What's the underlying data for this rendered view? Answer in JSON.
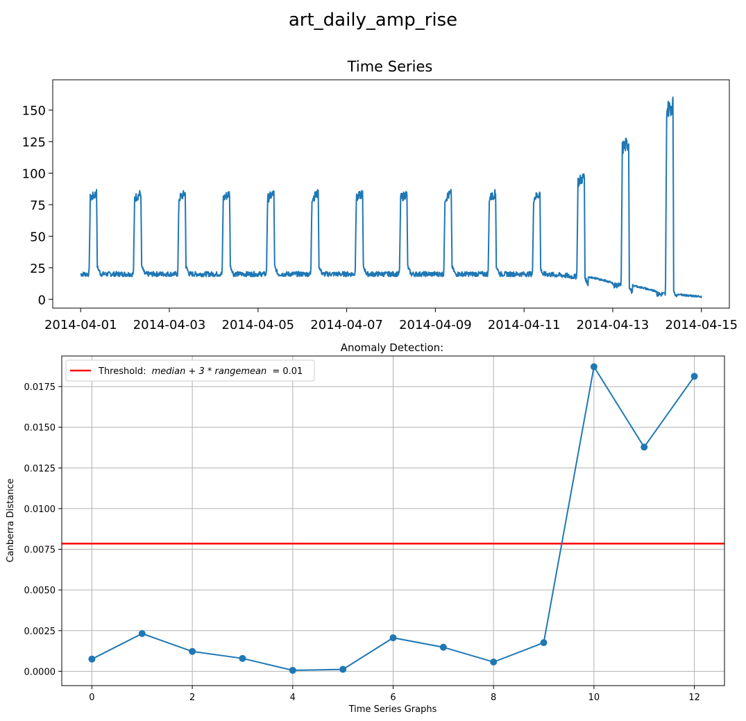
{
  "figure": {
    "suptitle": "art_daily_amp_rise"
  },
  "chart_data": [
    {
      "type": "line",
      "title": "Time Series",
      "xlabel": "",
      "ylabel": "",
      "x_tick_labels": [
        "2014-04-01",
        "2014-04-03",
        "2014-04-05",
        "2014-04-07",
        "2014-04-09",
        "2014-04-11",
        "2014-04-13",
        "2014-04-15"
      ],
      "y_ticks": [
        0,
        25,
        50,
        75,
        100,
        125,
        150
      ],
      "xlim": [
        "2014-04-01",
        "2014-04-15"
      ],
      "ylim": [
        -7,
        174
      ],
      "grid": false,
      "color": "#1f77b4",
      "series": [
        {
          "days": [
            {
              "date": "2014-04-01",
              "low_level": 20,
              "high_level": 80,
              "high_noise": 7
            },
            {
              "date": "2014-04-02",
              "low_level": 20,
              "high_level": 80,
              "high_noise": 7
            },
            {
              "date": "2014-04-03",
              "low_level": 20,
              "high_level": 80,
              "high_noise": 7
            },
            {
              "date": "2014-04-04",
              "low_level": 20,
              "high_level": 80,
              "high_noise": 7
            },
            {
              "date": "2014-04-05",
              "low_level": 20,
              "high_level": 80,
              "high_noise": 7
            },
            {
              "date": "2014-04-06",
              "low_level": 20,
              "high_level": 80,
              "high_noise": 7
            },
            {
              "date": "2014-04-07",
              "low_level": 20,
              "high_level": 80,
              "high_noise": 7
            },
            {
              "date": "2014-04-08",
              "low_level": 20,
              "high_level": 80,
              "high_noise": 7
            },
            {
              "date": "2014-04-09",
              "low_level": 20,
              "high_level": 80,
              "high_noise": 7
            },
            {
              "date": "2014-04-10",
              "low_level": 20,
              "high_level": 80,
              "high_noise": 7
            },
            {
              "date": "2014-04-11",
              "low_level": 20,
              "high_level": 80,
              "high_noise": 7
            },
            {
              "date": "2014-04-12",
              "low_level": 18,
              "high_level": 93,
              "high_noise": 9
            },
            {
              "date": "2014-04-13",
              "low_level": 11,
              "high_level": 120,
              "high_noise": 12
            },
            {
              "date": "2014-04-14",
              "low_level": 4,
              "high_level": 150,
              "high_noise": 14
            }
          ]
        }
      ]
    },
    {
      "type": "line",
      "title": "Anomaly Detection:",
      "xlabel": "Time Series Graphs",
      "ylabel": "Canberra Distance",
      "x_ticks": [
        0,
        2,
        4,
        6,
        8,
        10,
        12
      ],
      "y_ticks": [
        0.0,
        0.0025,
        0.005,
        0.0075,
        0.01,
        0.0125,
        0.015,
        0.0175
      ],
      "y_tick_labels": [
        "0.0000",
        "0.0025",
        "0.0050",
        "0.0075",
        "0.0100",
        "0.0125",
        "0.0150",
        "0.0175"
      ],
      "xlim": [
        -0.6,
        12.6
      ],
      "ylim": [
        -0.00088,
        0.01938
      ],
      "grid": true,
      "legend_position": "top-left",
      "series": [
        {
          "color": "#1f77b4",
          "marker": "circle",
          "x": [
            0,
            1,
            2,
            3,
            4,
            5,
            6,
            7,
            8,
            9,
            10,
            11,
            12
          ],
          "y": [
            0.00075,
            0.00232,
            0.00122,
            0.00079,
            6e-05,
            0.00012,
            0.00206,
            0.00148,
            0.00057,
            0.00176,
            0.01872,
            0.01378,
            0.01813
          ]
        }
      ],
      "threshold": {
        "name": "Threshold: median + 3 * rangemean = 0.01",
        "legend_text": "Threshold:",
        "legend_math": "median + 3 * rangemean",
        "legend_value": "= 0.01",
        "y": 0.00785,
        "color": "#ff0000"
      }
    }
  ]
}
